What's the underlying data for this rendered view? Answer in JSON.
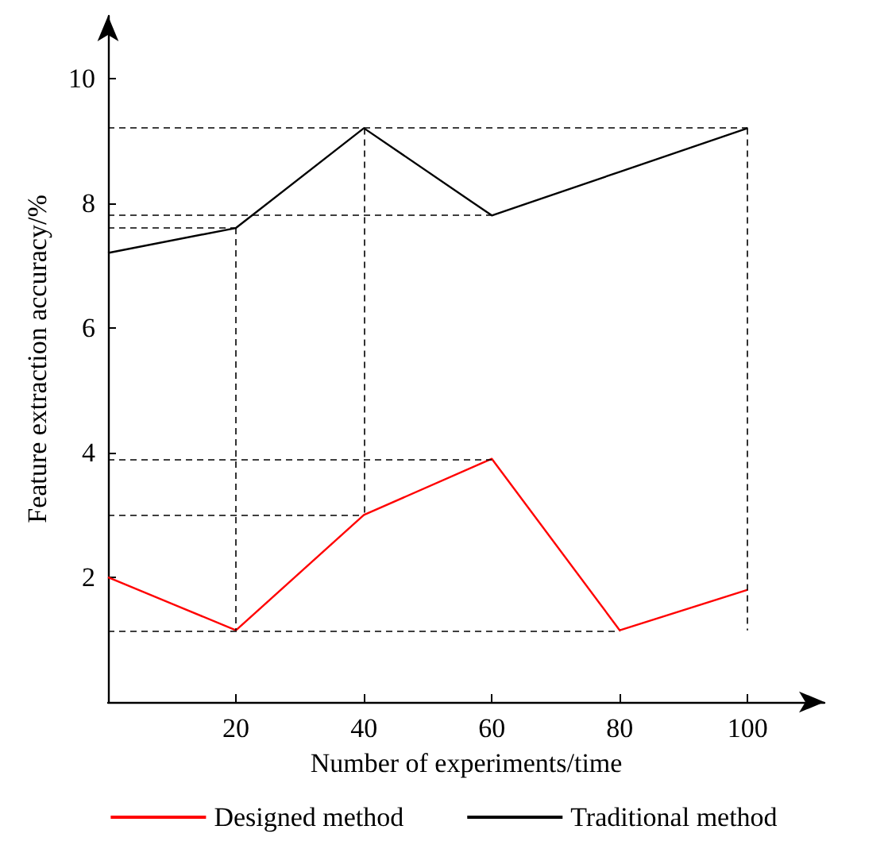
{
  "chart_data": {
    "type": "line",
    "xlabel": "Number of experiments/time",
    "ylabel": "Feature extraction accuracy/%",
    "x": [
      0,
      20,
      40,
      60,
      80,
      100
    ],
    "series": [
      {
        "name": "Designed method",
        "color": "#ff0000",
        "values": [
          2.0,
          1.15,
          3.0,
          3.9,
          1.15,
          1.8
        ]
      },
      {
        "name": "Traditional method",
        "color": "#000000",
        "values": [
          7.2,
          7.6,
          9.2,
          7.8,
          8.5,
          9.2
        ]
      }
    ],
    "xlim": [
      0,
      112
    ],
    "xticks": [
      20,
      40,
      60,
      80,
      100
    ],
    "ylim": [
      0,
      11
    ],
    "yticks": [
      2,
      4,
      6,
      8,
      10
    ],
    "ref_lines": [
      {
        "axis": "y",
        "value": 9.2,
        "line_style": "dashed"
      },
      {
        "axis": "y",
        "value": 7.8,
        "line_style": "dashed"
      },
      {
        "axis": "y",
        "value": 7.6,
        "line_style": "dashed"
      },
      {
        "axis": "y",
        "value": 3.9,
        "line_style": "dashed"
      },
      {
        "axis": "y",
        "value": 3.0,
        "line_style": "dashed"
      },
      {
        "axis": "y",
        "value": 1.15,
        "line_style": "dashed"
      },
      {
        "axis": "x",
        "value": 20,
        "line_style": "dashed"
      },
      {
        "axis": "x",
        "value": 40,
        "line_style": "dashed"
      },
      {
        "axis": "x",
        "value": 100,
        "line_style": "dashed"
      }
    ],
    "grid": false,
    "legend": "bottom",
    "marker": "none",
    "line_style": "solid"
  }
}
